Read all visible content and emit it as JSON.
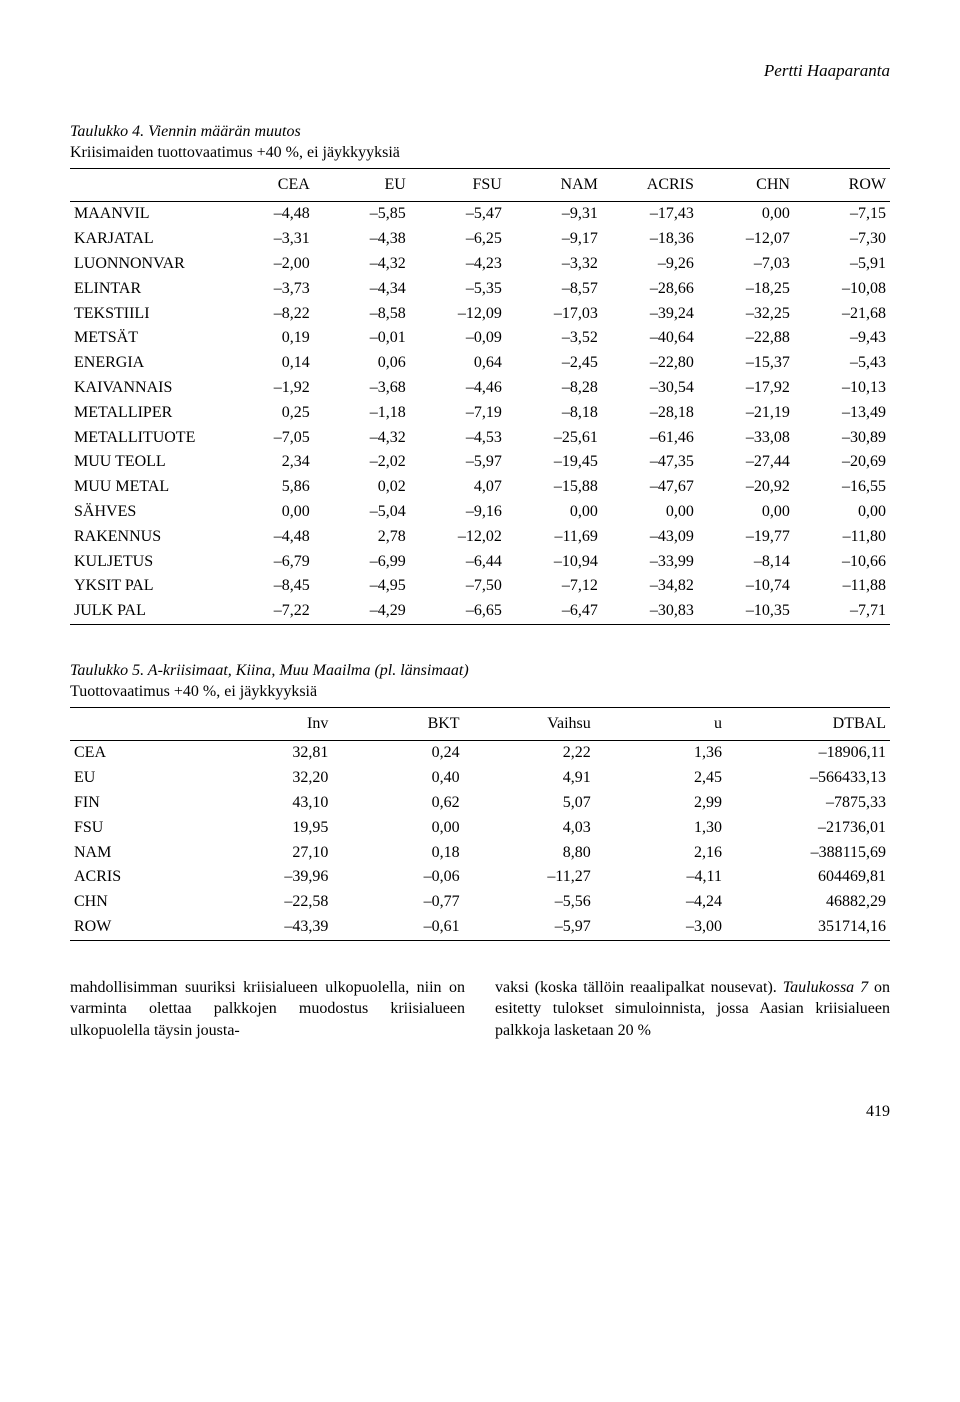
{
  "author": "Pertti Haaparanta",
  "table4": {
    "caption_label": "Taulukko 4. Viennin määrän muutos",
    "caption_sub": "Kriisimaiden tuottovaatimus +40 %, ei jäykkyyksiä",
    "columns": [
      "",
      "CEA",
      "EU",
      "FSU",
      "NAM",
      "ACRIS",
      "CHN",
      "ROW"
    ],
    "rows": [
      [
        "MAANVIL",
        "–4,48",
        "–5,85",
        "–5,47",
        "–9,31",
        "–17,43",
        "0,00",
        "–7,15"
      ],
      [
        "KARJATAL",
        "–3,31",
        "–4,38",
        "–6,25",
        "–9,17",
        "–18,36",
        "–12,07",
        "–7,30"
      ],
      [
        "LUONNONVAR",
        "–2,00",
        "–4,32",
        "–4,23",
        "–3,32",
        "–9,26",
        "–7,03",
        "–5,91"
      ],
      [
        "ELINTAR",
        "–3,73",
        "–4,34",
        "–5,35",
        "–8,57",
        "–28,66",
        "–18,25",
        "–10,08"
      ],
      [
        "TEKSTIILI",
        "–8,22",
        "–8,58",
        "–12,09",
        "–17,03",
        "–39,24",
        "–32,25",
        "–21,68"
      ],
      [
        "METSÄT",
        "0,19",
        "–0,01",
        "–0,09",
        "–3,52",
        "–40,64",
        "–22,88",
        "–9,43"
      ],
      [
        "ENERGIA",
        "0,14",
        "0,06",
        "0,64",
        "–2,45",
        "–22,80",
        "–15,37",
        "–5,43"
      ],
      [
        "KAIVANNAIS",
        "–1,92",
        "–3,68",
        "–4,46",
        "–8,28",
        "–30,54",
        "–17,92",
        "–10,13"
      ],
      [
        "METALLIPER",
        "0,25",
        "–1,18",
        "–7,19",
        "–8,18",
        "–28,18",
        "–21,19",
        "–13,49"
      ],
      [
        "METALLITUOTE",
        "–7,05",
        "–4,32",
        "–4,53",
        "–25,61",
        "–61,46",
        "–33,08",
        "–30,89"
      ],
      [
        "MUU TEOLL",
        "2,34",
        "–2,02",
        "–5,97",
        "–19,45",
        "–47,35",
        "–27,44",
        "–20,69"
      ],
      [
        "MUU METAL",
        "5,86",
        "0,02",
        "4,07",
        "–15,88",
        "–47,67",
        "–20,92",
        "–16,55"
      ],
      [
        "SÄHVES",
        "0,00",
        "–5,04",
        "–9,16",
        "0,00",
        "0,00",
        "0,00",
        "0,00"
      ],
      [
        "RAKENNUS",
        "–4,48",
        "2,78",
        "–12,02",
        "–11,69",
        "–43,09",
        "–19,77",
        "–11,80"
      ],
      [
        "KULJETUS",
        "–6,79",
        "–6,99",
        "–6,44",
        "–10,94",
        "–33,99",
        "–8,14",
        "–10,66"
      ],
      [
        "YKSIT PAL",
        "–8,45",
        "–4,95",
        "–7,50",
        "–7,12",
        "–34,82",
        "–10,74",
        "–11,88"
      ],
      [
        "JULK PAL",
        "–7,22",
        "–4,29",
        "–6,65",
        "–6,47",
        "–30,83",
        "–10,35",
        "–7,71"
      ]
    ]
  },
  "table5": {
    "caption_label": "Taulukko 5. A-kriisimaat, Kiina, Muu Maailma (pl. länsimaat)",
    "caption_sub": "Tuottovaatimus +40 %, ei jäykkyyksiä",
    "columns": [
      "",
      "Inv",
      "BKT",
      "Vaihsu",
      "u",
      "DTBAL"
    ],
    "rows": [
      [
        "CEA",
        "32,81",
        "0,24",
        "2,22",
        "1,36",
        "–18906,11"
      ],
      [
        "EU",
        "32,20",
        "0,40",
        "4,91",
        "2,45",
        "–566433,13"
      ],
      [
        "FIN",
        "43,10",
        "0,62",
        "5,07",
        "2,99",
        "–7875,33"
      ],
      [
        "FSU",
        "19,95",
        "0,00",
        "4,03",
        "1,30",
        "–21736,01"
      ],
      [
        "NAM",
        "27,10",
        "0,18",
        "8,80",
        "2,16",
        "–388115,69"
      ],
      [
        "ACRIS",
        "–39,96",
        "–0,06",
        "–11,27",
        "–4,11",
        "604469,81"
      ],
      [
        "CHN",
        "–22,58",
        "–0,77",
        "–5,56",
        "–4,24",
        "46882,29"
      ],
      [
        "ROW",
        "–43,39",
        "–0,61",
        "–5,97",
        "–3,00",
        "351714,16"
      ]
    ]
  },
  "bodytext": {
    "left": "mahdollisimman suuriksi kriisialueen ulkopuolella, niin on varminta olettaa palkkojen muodostus kriisialueen ulkopuolella täysin jousta-",
    "right_a": "vaksi (koska tällöin reaalipalkat nousevat). ",
    "right_b": "Taulukossa 7",
    "right_c": " on esitetty tulokset simuloinnista, jossa Aasian kriisialueen palkkoja lasketaan 20 %"
  },
  "pagenum": "419"
}
